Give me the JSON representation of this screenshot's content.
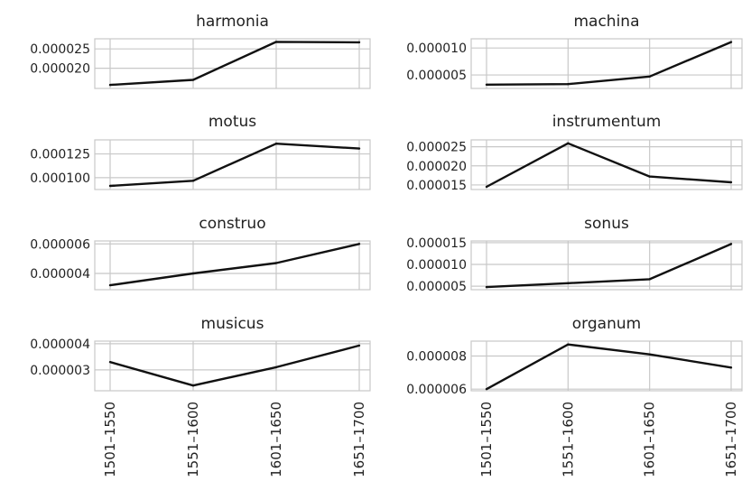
{
  "chart_data": [
    {
      "type": "line",
      "title": "harmonia",
      "categories": [
        "1501–1550",
        "1551–1600",
        "1601–1650",
        "1651–1700"
      ],
      "values": [
        1.57e-05,
        1.7e-05,
        2.68e-05,
        2.67e-05
      ],
      "yticks": [
        2e-05,
        2.5e-05
      ],
      "ytick_labels": [
        "0.000020",
        "0.000025"
      ],
      "ylim": [
        1.48e-05,
        2.76e-05
      ]
    },
    {
      "type": "line",
      "title": "machina",
      "categories": [
        "1501–1550",
        "1551–1600",
        "1601–1650",
        "1651–1700"
      ],
      "values": [
        3.2e-06,
        3.3e-06,
        4.7e-06,
        1.11e-05
      ],
      "yticks": [
        5e-06,
        1e-05
      ],
      "ytick_labels": [
        "0.000005",
        "0.000010"
      ],
      "ylim": [
        2.5e-06,
        1.17e-05
      ]
    },
    {
      "type": "line",
      "title": "motus",
      "categories": [
        "1501–1550",
        "1551–1600",
        "1601–1650",
        "1651–1700"
      ],
      "values": [
        9.13e-05,
        9.67e-05,
        0.0001358,
        0.0001307
      ],
      "yticks": [
        0.0001,
        0.000125
      ],
      "ytick_labels": [
        "0.000100",
        "0.000125"
      ],
      "ylim": [
        8.75e-05,
        0.0001398
      ]
    },
    {
      "type": "line",
      "title": "instrumentum",
      "categories": [
        "1501–1550",
        "1551–1600",
        "1601–1650",
        "1651–1700"
      ],
      "values": [
        1.45e-05,
        2.59e-05,
        1.72e-05,
        1.57e-05
      ],
      "yticks": [
        1.5e-05,
        2e-05,
        2.5e-05
      ],
      "ytick_labels": [
        "0.000015",
        "0.000020",
        "0.000025"
      ],
      "ylim": [
        1.38e-05,
        2.68e-05
      ]
    },
    {
      "type": "line",
      "title": "construo",
      "categories": [
        "1501–1550",
        "1551–1600",
        "1601–1650",
        "1651–1700"
      ],
      "values": [
        3.2e-06,
        4e-06,
        4.7e-06,
        6e-06
      ],
      "yticks": [
        4e-06,
        6e-06
      ],
      "ytick_labels": [
        "0.000004",
        "0.000006"
      ],
      "ylim": [
        2.9e-06,
        6.2e-06
      ]
    },
    {
      "type": "line",
      "title": "sonus",
      "categories": [
        "1501–1550",
        "1551–1600",
        "1601–1650",
        "1651–1700"
      ],
      "values": [
        4.8e-06,
        5.7e-06,
        6.6e-06,
        1.47e-05
      ],
      "yticks": [
        5e-06,
        1e-05,
        1.5e-05
      ],
      "ytick_labels": [
        "0.000005",
        "0.000010",
        "0.000015"
      ],
      "ylim": [
        4.2e-06,
        1.54e-05
      ]
    },
    {
      "type": "line",
      "title": "musicus",
      "categories": [
        "1501–1550",
        "1551–1600",
        "1601–1650",
        "1651–1700"
      ],
      "values": [
        3.3e-06,
        2.4e-06,
        3.1e-06,
        3.93e-06
      ],
      "yticks": [
        3e-06,
        4e-06
      ],
      "ytick_labels": [
        "0.000003",
        "0.000004"
      ],
      "ylim": [
        2.2e-06,
        4.1e-06
      ]
    },
    {
      "type": "line",
      "title": "organum",
      "categories": [
        "1501–1550",
        "1551–1600",
        "1601–1650",
        "1651–1700"
      ],
      "values": [
        6e-06,
        8.7e-06,
        8.1e-06,
        7.3e-06
      ],
      "yticks": [
        6e-06,
        8e-06
      ],
      "ytick_labels": [
        "0.000006",
        "0.000008"
      ],
      "ylim": [
        5.9e-06,
        8.9e-06
      ]
    }
  ]
}
